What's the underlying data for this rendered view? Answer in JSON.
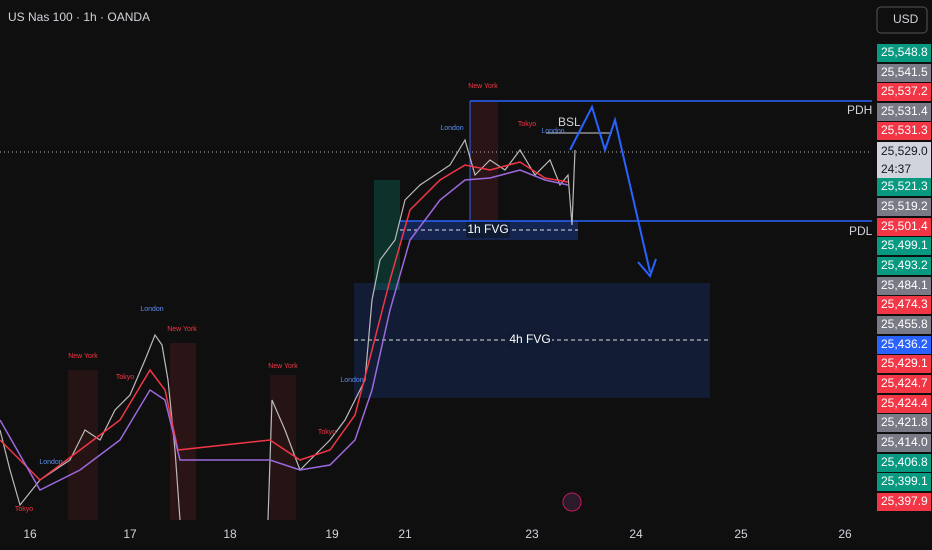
{
  "header": {
    "title": "US Nas 100 · 1h · OANDA",
    "currency": "USD"
  },
  "price_scale": {
    "labels": [
      {
        "text": "25,548.8",
        "color": "#089981"
      },
      {
        "text": "25,541.5",
        "color": "#787b86"
      },
      {
        "text": "25,537.2",
        "color": "#f23645"
      },
      {
        "text": "25,531.4",
        "color": "#787b86"
      },
      {
        "text": "25,531.3",
        "color": "#f23645"
      },
      {
        "text": "25,521.3",
        "color": "#089981"
      },
      {
        "text": "25,519.2",
        "color": "#787b86"
      },
      {
        "text": "25,501.4",
        "color": "#f23645"
      },
      {
        "text": "25,499.1",
        "color": "#089981"
      },
      {
        "text": "25,493.2",
        "color": "#089981"
      },
      {
        "text": "25,484.1",
        "color": "#787b86"
      },
      {
        "text": "25,474.3",
        "color": "#f23645"
      },
      {
        "text": "25,455.8",
        "color": "#787b86"
      },
      {
        "text": "25,436.2",
        "color": "#2962ff"
      },
      {
        "text": "25,429.1",
        "color": "#f23645"
      },
      {
        "text": "25,424.7",
        "color": "#f23645"
      },
      {
        "text": "25,424.4",
        "color": "#f23645"
      },
      {
        "text": "25,421.8",
        "color": "#787b86"
      },
      {
        "text": "25,414.0",
        "color": "#787b86"
      },
      {
        "text": "25,406.8",
        "color": "#089981"
      },
      {
        "text": "25,399.1",
        "color": "#089981"
      },
      {
        "text": "25,397.9",
        "color": "#f23645"
      }
    ],
    "current": {
      "price": "25,529.0",
      "countdown": "24:37"
    }
  },
  "time_scale": {
    "labels": [
      "16",
      "17",
      "18",
      "19",
      "21",
      "23",
      "24",
      "25",
      "26"
    ]
  },
  "annotations": {
    "pdh": "PDH",
    "pdl": "PDL",
    "bsl": "BSL",
    "fvg_1h": "1h FVG",
    "fvg_4h": "4h FVG"
  },
  "sessions": [
    "New York",
    "London",
    "Tokyo",
    "London",
    "New York",
    "Tokyo",
    "London",
    "New York",
    "New York",
    "Tokyo",
    "London",
    "Tokyo",
    "London"
  ]
}
